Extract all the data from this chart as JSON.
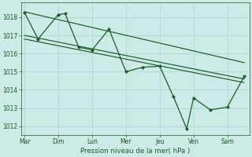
{
  "background_color": "#cceae6",
  "grid_color": "#b0d8d4",
  "line_color": "#1a5c2a",
  "ylabel_ticks": [
    1012,
    1013,
    1014,
    1015,
    1016,
    1017,
    1018
  ],
  "x_labels": [
    "Mar",
    "Dim",
    "Lun",
    "Mer",
    "Jeu",
    "Ven",
    "Sam"
  ],
  "xlabel": "Pression niveau de la mer( hPa )",
  "zigzag_x": [
    0,
    0.4,
    1.0,
    1.2,
    1.6,
    2.0,
    2.5,
    3.0,
    3.5,
    4.0,
    4.4,
    4.8,
    5.0,
    5.5,
    6.0,
    6.5
  ],
  "zigzag_y": [
    1018.25,
    1016.8,
    1018.15,
    1018.2,
    1016.35,
    1016.2,
    1017.35,
    1015.0,
    1015.25,
    1015.3,
    1013.65,
    1011.85,
    1013.55,
    1012.9,
    1013.05,
    1014.75
  ],
  "trend1_x": [
    0,
    6.5
  ],
  "trend1_y": [
    1018.3,
    1015.5
  ],
  "trend2_x": [
    0,
    6.5
  ],
  "trend2_y": [
    1017.0,
    1014.6
  ],
  "trend3_x": [
    0,
    6.5
  ],
  "trend3_y": [
    1016.8,
    1014.4
  ],
  "x_tick_positions": [
    0,
    1.0,
    2.0,
    3.0,
    4.0,
    5.0,
    6.0
  ],
  "ylim": [
    1011.5,
    1018.8
  ],
  "xlim": [
    -0.1,
    6.65
  ]
}
